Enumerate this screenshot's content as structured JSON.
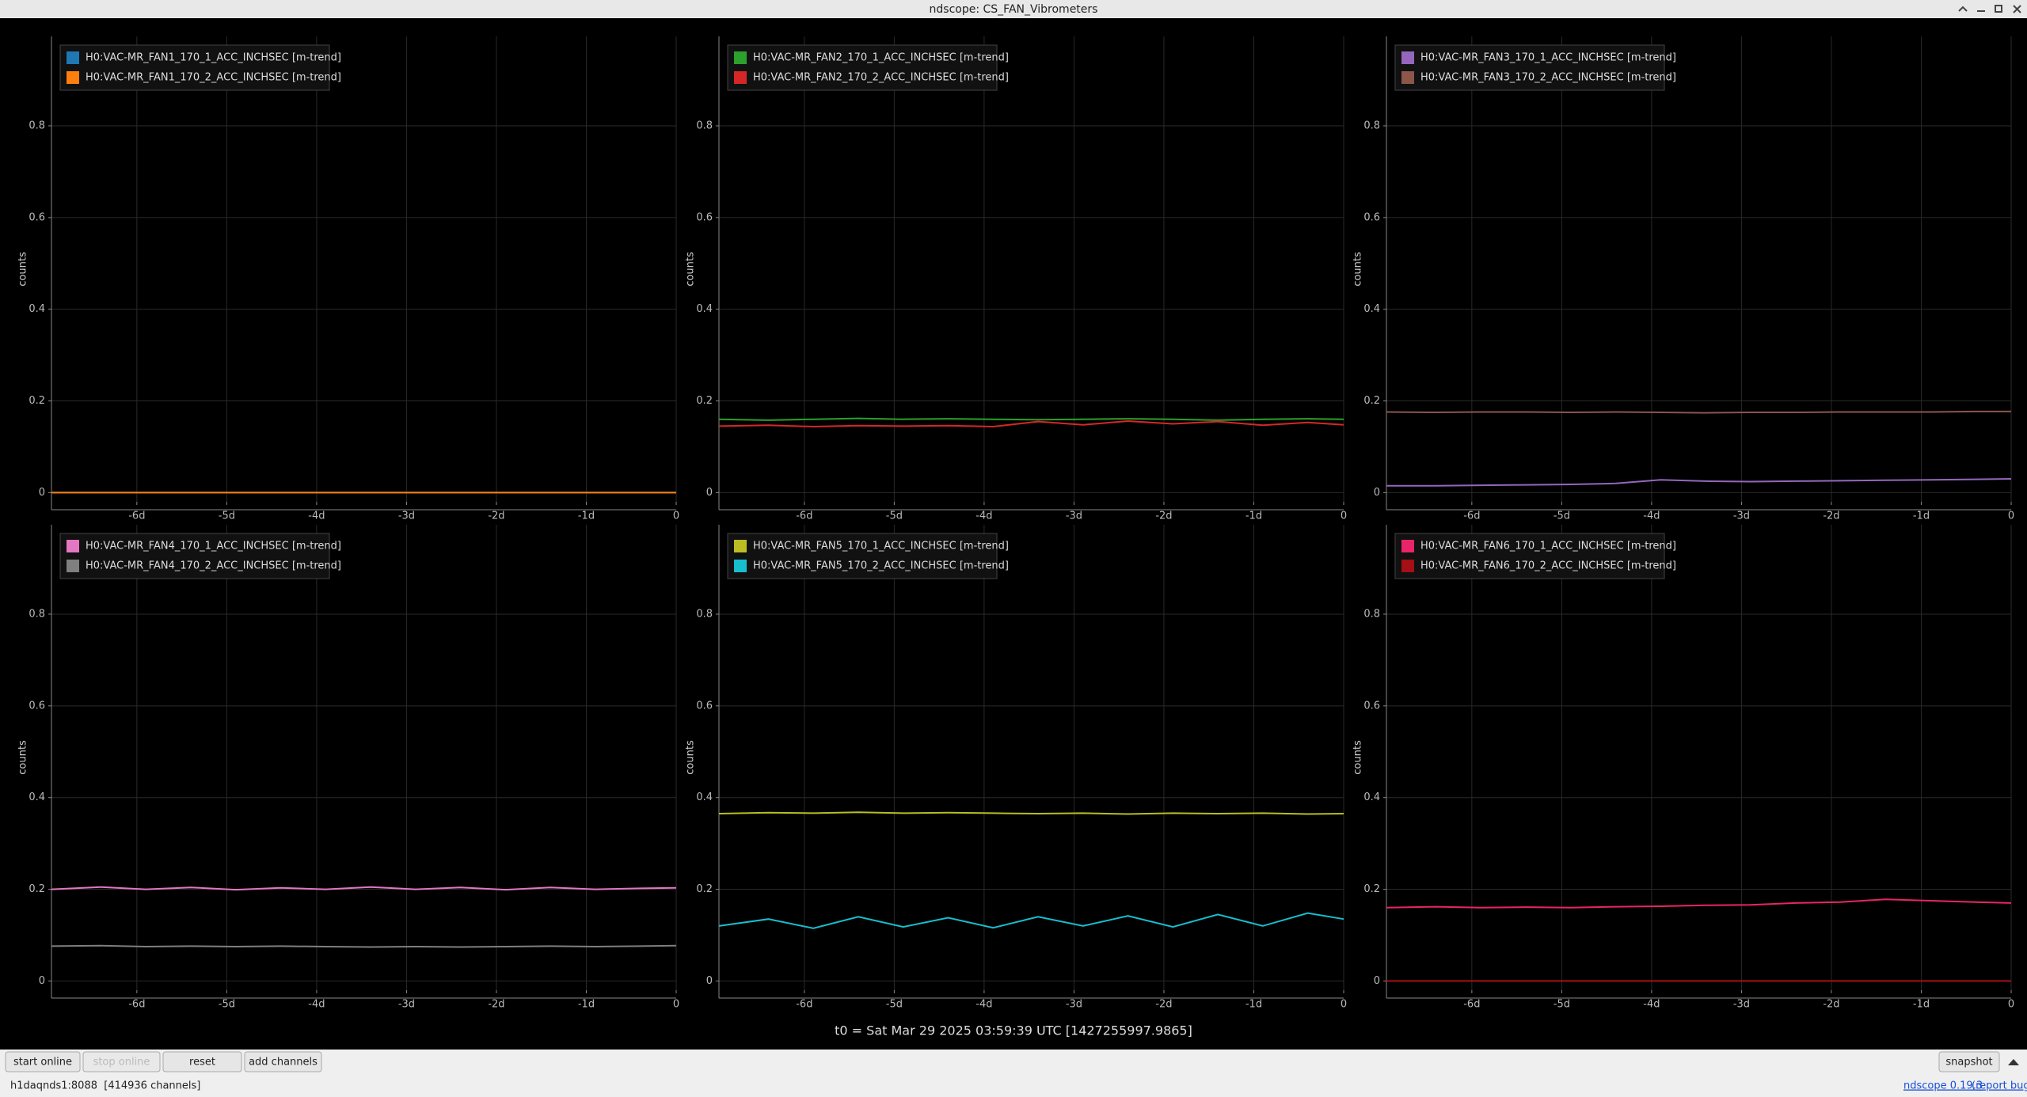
{
  "window_title": "ndscope: CS_FAN_Vibrometers",
  "chart_data": [
    {
      "type": "line",
      "ylabel": "counts",
      "xlim": [
        -6.95,
        0
      ],
      "ylim": [
        -0.02,
        0.995
      ],
      "xticks": [
        {
          "value": -6,
          "label": "-6d"
        },
        {
          "value": -5,
          "label": "-5d"
        },
        {
          "value": -4,
          "label": "-4d"
        },
        {
          "value": -3,
          "label": "-3d"
        },
        {
          "value": -2,
          "label": "-2d"
        },
        {
          "value": -1,
          "label": "-1d"
        },
        0
      ],
      "yticks": [
        0,
        0.2,
        0.4,
        0.6,
        0.8
      ],
      "grid": true,
      "x": [
        -6.95,
        -6.4,
        -5.9,
        -5.4,
        -4.9,
        -4.4,
        -3.9,
        -3.4,
        -2.9,
        -2.4,
        -1.9,
        -1.4,
        -0.9,
        -0.4,
        0
      ],
      "series": [
        {
          "name": "H0:VAC-MR_FAN1_170_1_ACC_INCHSEC [m-trend]",
          "color": "#1f77b4",
          "values": [
            0,
            0,
            0,
            0,
            0,
            0,
            0,
            0,
            0,
            0,
            0,
            0,
            0,
            0,
            0
          ]
        },
        {
          "name": "H0:VAC-MR_FAN1_170_2_ACC_INCHSEC [m-trend]",
          "color": "#ff7f0e",
          "values": [
            0,
            0,
            0,
            0,
            0,
            0,
            0,
            0,
            0,
            0,
            0,
            0,
            0,
            0,
            0
          ]
        }
      ]
    },
    {
      "type": "line",
      "ylabel": "counts",
      "xlim": [
        -6.95,
        0
      ],
      "ylim": [
        -0.02,
        0.995
      ],
      "xticks": [
        {
          "value": -6,
          "label": "-6d"
        },
        {
          "value": -5,
          "label": "-5d"
        },
        {
          "value": -4,
          "label": "-4d"
        },
        {
          "value": -3,
          "label": "-3d"
        },
        {
          "value": -2,
          "label": "-2d"
        },
        {
          "value": -1,
          "label": "-1d"
        },
        0
      ],
      "yticks": [
        0,
        0.2,
        0.4,
        0.6,
        0.8
      ],
      "grid": true,
      "x": [
        -6.95,
        -6.4,
        -5.9,
        -5.4,
        -4.9,
        -4.4,
        -3.9,
        -3.4,
        -2.9,
        -2.4,
        -1.9,
        -1.4,
        -0.9,
        -0.4,
        0
      ],
      "series": [
        {
          "name": "H0:VAC-MR_FAN2_170_1_ACC_INCHSEC [m-trend]",
          "color": "#2ca02c",
          "values": [
            0.16,
            0.158,
            0.16,
            0.162,
            0.16,
            0.161,
            0.16,
            0.159,
            0.16,
            0.161,
            0.16,
            0.158,
            0.16,
            0.161,
            0.16
          ]
        },
        {
          "name": "H0:VAC-MR_FAN2_170_2_ACC_INCHSEC [m-trend]",
          "color": "#d62728",
          "values": [
            0.145,
            0.147,
            0.144,
            0.146,
            0.145,
            0.146,
            0.144,
            0.155,
            0.148,
            0.156,
            0.15,
            0.155,
            0.147,
            0.153,
            0.148
          ]
        }
      ]
    },
    {
      "type": "line",
      "ylabel": "counts",
      "xlim": [
        -6.95,
        0
      ],
      "ylim": [
        -0.02,
        0.995
      ],
      "xticks": [
        {
          "value": -6,
          "label": "-6d"
        },
        {
          "value": -5,
          "label": "-5d"
        },
        {
          "value": -4,
          "label": "-4d"
        },
        {
          "value": -3,
          "label": "-3d"
        },
        {
          "value": -2,
          "label": "-2d"
        },
        {
          "value": -1,
          "label": "-1d"
        },
        0
      ],
      "yticks": [
        0,
        0.2,
        0.4,
        0.6,
        0.8
      ],
      "grid": true,
      "x": [
        -6.95,
        -6.4,
        -5.9,
        -5.4,
        -4.9,
        -4.4,
        -3.9,
        -3.4,
        -2.9,
        -2.4,
        -1.9,
        -1.4,
        -0.9,
        -0.4,
        0
      ],
      "series": [
        {
          "name": "H0:VAC-MR_FAN3_170_1_ACC_INCHSEC [m-trend]",
          "color": "#9467bd",
          "values": [
            0.015,
            0.015,
            0.016,
            0.017,
            0.018,
            0.02,
            0.028,
            0.025,
            0.024,
            0.025,
            0.026,
            0.027,
            0.028,
            0.029,
            0.03
          ]
        },
        {
          "name": "H0:VAC-MR_FAN3_170_2_ACC_INCHSEC [m-trend]",
          "color": "#8c564b",
          "values": [
            0.176,
            0.175,
            0.176,
            0.176,
            0.175,
            0.176,
            0.175,
            0.174,
            0.175,
            0.175,
            0.176,
            0.176,
            0.176,
            0.177,
            0.177
          ]
        }
      ]
    },
    {
      "type": "line",
      "ylabel": "counts",
      "xlim": [
        -6.95,
        0
      ],
      "ylim": [
        -0.02,
        0.995
      ],
      "xticks": [
        {
          "value": -6,
          "label": "-6d"
        },
        {
          "value": -5,
          "label": "-5d"
        },
        {
          "value": -4,
          "label": "-4d"
        },
        {
          "value": -3,
          "label": "-3d"
        },
        {
          "value": -2,
          "label": "-2d"
        },
        {
          "value": -1,
          "label": "-1d"
        },
        0
      ],
      "yticks": [
        0,
        0.2,
        0.4,
        0.6,
        0.8
      ],
      "grid": true,
      "x": [
        -6.95,
        -6.4,
        -5.9,
        -5.4,
        -4.9,
        -4.4,
        -3.9,
        -3.4,
        -2.9,
        -2.4,
        -1.9,
        -1.4,
        -0.9,
        -0.4,
        0
      ],
      "series": [
        {
          "name": "H0:VAC-MR_FAN4_170_1_ACC_INCHSEC [m-trend]",
          "color": "#e377c2",
          "values": [
            0.2,
            0.205,
            0.2,
            0.204,
            0.199,
            0.203,
            0.2,
            0.205,
            0.2,
            0.204,
            0.199,
            0.204,
            0.2,
            0.202,
            0.203
          ]
        },
        {
          "name": "H0:VAC-MR_FAN4_170_2_ACC_INCHSEC [m-trend]",
          "color": "#7f7f7f",
          "values": [
            0.076,
            0.077,
            0.075,
            0.076,
            0.075,
            0.076,
            0.075,
            0.074,
            0.075,
            0.074,
            0.075,
            0.076,
            0.075,
            0.076,
            0.077
          ]
        }
      ]
    },
    {
      "type": "line",
      "ylabel": "counts",
      "xlim": [
        -6.95,
        0
      ],
      "ylim": [
        -0.02,
        0.995
      ],
      "xticks": [
        {
          "value": -6,
          "label": "-6d"
        },
        {
          "value": -5,
          "label": "-5d"
        },
        {
          "value": -4,
          "label": "-4d"
        },
        {
          "value": -3,
          "label": "-3d"
        },
        {
          "value": -2,
          "label": "-2d"
        },
        {
          "value": -1,
          "label": "-1d"
        },
        0
      ],
      "yticks": [
        0,
        0.2,
        0.4,
        0.6,
        0.8
      ],
      "grid": true,
      "x": [
        -6.95,
        -6.4,
        -5.9,
        -5.4,
        -4.9,
        -4.4,
        -3.9,
        -3.4,
        -2.9,
        -2.4,
        -1.9,
        -1.4,
        -0.9,
        -0.4,
        0
      ],
      "series": [
        {
          "name": "H0:VAC-MR_FAN5_170_1_ACC_INCHSEC [m-trend]",
          "color": "#bcbd22",
          "values": [
            0.365,
            0.367,
            0.366,
            0.368,
            0.366,
            0.367,
            0.366,
            0.365,
            0.366,
            0.364,
            0.366,
            0.365,
            0.366,
            0.364,
            0.365
          ]
        },
        {
          "name": "H0:VAC-MR_FAN5_170_2_ACC_INCHSEC [m-trend]",
          "color": "#17becf",
          "values": [
            0.12,
            0.135,
            0.115,
            0.14,
            0.118,
            0.138,
            0.116,
            0.14,
            0.12,
            0.142,
            0.118,
            0.145,
            0.12,
            0.148,
            0.135
          ]
        }
      ]
    },
    {
      "type": "line",
      "ylabel": "counts",
      "xlim": [
        -6.95,
        0
      ],
      "ylim": [
        -0.02,
        0.995
      ],
      "xticks": [
        {
          "value": -6,
          "label": "-6d"
        },
        {
          "value": -5,
          "label": "-5d"
        },
        {
          "value": -4,
          "label": "-4d"
        },
        {
          "value": -3,
          "label": "-3d"
        },
        {
          "value": -2,
          "label": "-2d"
        },
        {
          "value": -1,
          "label": "-1d"
        },
        0
      ],
      "yticks": [
        0,
        0.2,
        0.4,
        0.6,
        0.8
      ],
      "grid": true,
      "x": [
        -6.95,
        -6.4,
        -5.9,
        -5.4,
        -4.9,
        -4.4,
        -3.9,
        -3.4,
        -2.9,
        -2.4,
        -1.9,
        -1.4,
        -0.9,
        -0.4,
        0
      ],
      "series": [
        {
          "name": "H0:VAC-MR_FAN6_170_1_ACC_INCHSEC [m-trend]",
          "color": "#e8246a",
          "values": [
            0.16,
            0.162,
            0.16,
            0.161,
            0.16,
            0.162,
            0.163,
            0.165,
            0.166,
            0.17,
            0.172,
            0.178,
            0.175,
            0.172,
            0.17
          ]
        },
        {
          "name": "H0:VAC-MR_FAN6_170_2_ACC_INCHSEC [m-trend]",
          "color": "#a50f15",
          "values": [
            0,
            0,
            0,
            0,
            0,
            0,
            0,
            0,
            0,
            0,
            0,
            0,
            0,
            0,
            0
          ]
        }
      ]
    }
  ],
  "t0_label": "t0 = Sat Mar 29 2025 03:59:39 UTC [1427255997.9865]",
  "toolbar": {
    "buttons": [
      "start online",
      "stop online",
      "reset",
      "add channels"
    ],
    "snapshot": "snapshot"
  },
  "status": {
    "server": "h1daqnds1:8088  [414936 channels]",
    "version": "ndscope 0.19.3",
    "report_bug": "(report bug)"
  }
}
